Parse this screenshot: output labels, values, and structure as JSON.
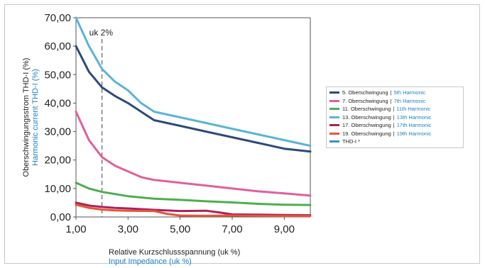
{
  "chart_data": {
    "type": "line",
    "ylabel_de": "Oberschwingungsstrom THD-I (%)",
    "ylabel_en": "Harmonic current THD-I (%)",
    "xlabel_de": "Relative Kurzschlussspannung (uk %)",
    "xlabel_en": "Input Impedance (uk %)",
    "xlim": [
      1,
      10
    ],
    "ylim": [
      0,
      70
    ],
    "x_ticks": [
      1,
      3,
      5,
      7,
      9
    ],
    "x_tick_labels": [
      "1,00",
      "3,00",
      "5,00",
      "7,00",
      "9,00"
    ],
    "y_ticks": [
      0,
      10,
      20,
      30,
      40,
      50,
      60,
      70
    ],
    "y_tick_labels": [
      "0,00",
      "10,00",
      "20,00",
      "30,00",
      "40,00",
      "50,00",
      "60,00",
      "70,00"
    ],
    "annotation": {
      "text": "uk 2%",
      "x": 2
    },
    "grid": false,
    "series": [
      {
        "name": "5. Oberschwingung",
        "name_en": "5th Harmonic",
        "color": "#2e4a7a",
        "x": [
          1,
          1.5,
          2,
          2.5,
          3,
          3.5,
          4,
          5,
          6,
          7,
          8,
          9,
          10
        ],
        "y": [
          60,
          51,
          45.5,
          42.5,
          40,
          37,
          34,
          32,
          30,
          28,
          26,
          24,
          23
        ]
      },
      {
        "name": "7. Oberschwingung",
        "name_en": "7th Harmonic",
        "color": "#e0609a",
        "x": [
          1,
          1.5,
          2,
          2.5,
          3,
          3.5,
          4,
          5,
          6,
          7,
          8,
          9,
          10
        ],
        "y": [
          37,
          27,
          21,
          18,
          16,
          14,
          13,
          12,
          11,
          10,
          9,
          8.3,
          7.5
        ]
      },
      {
        "name": "11. Oberschwingung",
        "name_en": "11th Harmonic",
        "color": "#4caf50",
        "x": [
          1,
          1.5,
          2,
          3,
          4,
          5,
          6,
          7,
          8,
          9,
          10
        ],
        "y": [
          12,
          10,
          8.8,
          7.3,
          6.4,
          6,
          5.5,
          5.1,
          4.6,
          4.3,
          4.2
        ]
      },
      {
        "name": "13. Oberschwingung",
        "name_en": "13th Harmonic",
        "color": "#5ab4d6",
        "x": [
          1,
          1.5,
          2,
          2.5,
          3,
          3.5,
          4,
          5,
          6,
          7,
          8,
          9,
          10
        ],
        "y": [
          70,
          60,
          52,
          47.5,
          44.5,
          40,
          37,
          35,
          33,
          31,
          29,
          27,
          25
        ]
      },
      {
        "name": "17. Oberschwingung",
        "name_en": "17th Harmonic",
        "color": "#a8245a",
        "x": [
          1,
          1.5,
          2,
          2.5,
          3,
          4,
          5,
          6,
          6.5,
          7,
          8,
          9,
          10
        ],
        "y": [
          5,
          4,
          3.5,
          3.2,
          3,
          2.5,
          2.1,
          2.2,
          1.6,
          0.9,
          0.8,
          0.7,
          0.6
        ]
      },
      {
        "name": "19. Oberschwingung",
        "name_en": "19th Harmonic",
        "color": "#e8553a",
        "x": [
          1,
          1.5,
          2,
          2.5,
          3,
          4,
          4.5,
          5,
          6,
          7,
          8,
          9,
          10
        ],
        "y": [
          4.3,
          3.2,
          2.6,
          2.3,
          2.2,
          2.1,
          1.1,
          0.5,
          0.4,
          0.5,
          0.4,
          0.3,
          0.3
        ]
      },
      {
        "name": "THD-I *",
        "color": "#3a90c0"
      }
    ]
  }
}
